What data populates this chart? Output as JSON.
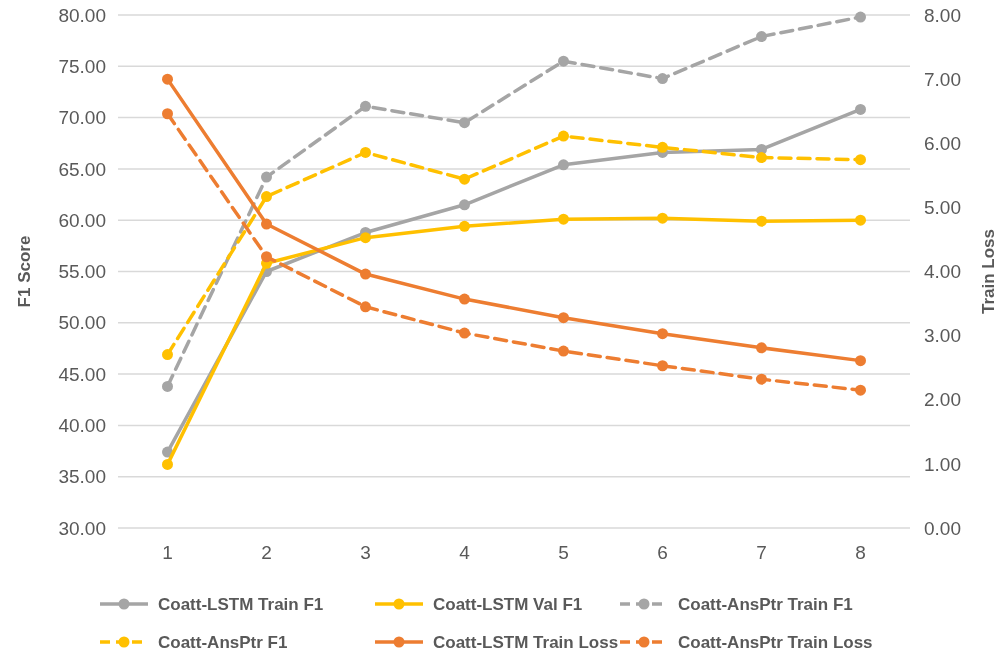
{
  "chart_data": {
    "type": "line",
    "ylabel": "F1 Score",
    "y2label": "Train Loss",
    "categories": [
      "1",
      "2",
      "3",
      "4",
      "5",
      "6",
      "7",
      "8"
    ],
    "ylim": [
      30,
      80
    ],
    "yticks": [
      {
        "value": 30,
        "label": "30.00"
      },
      {
        "value": 35,
        "label": "35.00"
      },
      {
        "value": 40,
        "label": "40.00"
      },
      {
        "value": 45,
        "label": "45.00"
      },
      {
        "value": 50,
        "label": "50.00"
      },
      {
        "value": 55,
        "label": "55.00"
      },
      {
        "value": 60,
        "label": "60.00"
      },
      {
        "value": 65,
        "label": "65.00"
      },
      {
        "value": 70,
        "label": "70.00"
      },
      {
        "value": 75,
        "label": "75.00"
      },
      {
        "value": 80,
        "label": "80.00"
      }
    ],
    "y2lim": [
      0,
      8
    ],
    "y2ticks": [
      {
        "value": 0,
        "label": "0.00"
      },
      {
        "value": 1,
        "label": "1.00"
      },
      {
        "value": 2,
        "label": "2.00"
      },
      {
        "value": 3,
        "label": "3.00"
      },
      {
        "value": 4,
        "label": "4.00"
      },
      {
        "value": 5,
        "label": "5.00"
      },
      {
        "value": 6,
        "label": "6.00"
      },
      {
        "value": 7,
        "label": "7.00"
      },
      {
        "value": 8,
        "label": "8.00"
      }
    ],
    "grid": "y",
    "legend": "bottom",
    "marker": "circle",
    "series": [
      {
        "name": "Coatt-LSTM Train F1",
        "color": "#a5a5a5",
        "line_style": "solid",
        "values": [
          37.4,
          55.0,
          58.8,
          61.5,
          65.4,
          66.6,
          66.9,
          70.8
        ]
      },
      {
        "name": "Coatt-LSTM Val F1",
        "color": "#ffc000",
        "line_style": "solid",
        "values": [
          36.2,
          55.8,
          58.3,
          59.4,
          60.1,
          60.2,
          59.9,
          60.0
        ]
      },
      {
        "name": "Coatt-AnsPtr Train F1",
        "color": "#a5a5a5",
        "line_style": "dashed",
        "values": [
          43.8,
          64.2,
          71.1,
          69.5,
          75.5,
          73.8,
          77.9,
          79.8
        ]
      },
      {
        "name": "Coatt-AnsPtr F1",
        "color": "#ffc000",
        "line_style": "dashed",
        "values": [
          46.9,
          62.3,
          66.6,
          64.0,
          68.2,
          67.1,
          66.1,
          65.9
        ]
      },
      {
        "name": "Coatt-LSTM Train Loss",
        "color": "#ed7d31",
        "line_style": "solid",
        "axis": "y2",
        "values": [
          7.0,
          4.74,
          3.96,
          3.57,
          3.28,
          3.03,
          2.81,
          2.61
        ]
      },
      {
        "name": "Coatt-AnsPtr Train Loss",
        "color": "#ed7d31",
        "line_style": "dashed",
        "axis": "y2",
        "values": [
          6.46,
          4.23,
          3.45,
          3.04,
          2.76,
          2.53,
          2.32,
          2.15
        ]
      }
    ]
  }
}
